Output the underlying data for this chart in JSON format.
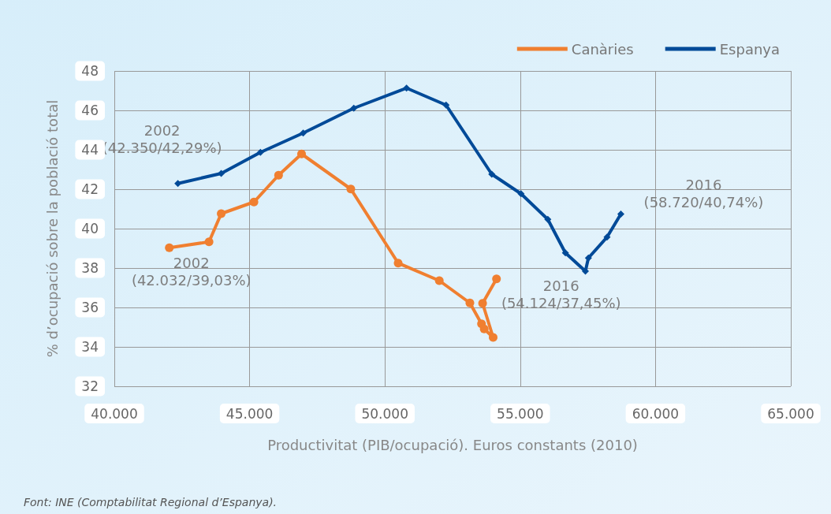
{
  "chart_data": {
    "type": "line",
    "xlabel": "Productivitat (PIB/ocupació). Euros constants (2010)",
    "ylabel": "% d’ocupació sobre la població total",
    "xlim": [
      40000,
      65000
    ],
    "xticks": [
      {
        "value": 40000,
        "label": "40.000"
      },
      {
        "value": 45000,
        "label": "45.000"
      },
      {
        "value": 50000,
        "label": "50.000"
      },
      {
        "value": 55000,
        "label": "55.000"
      },
      {
        "value": 60000,
        "label": "60.000"
      },
      {
        "value": 65000,
        "label": "65.000"
      }
    ],
    "ylim": [
      32,
      48
    ],
    "yticks": [
      32,
      34,
      36,
      38,
      40,
      42,
      44,
      46,
      48
    ],
    "grid": true,
    "legend": "top right",
    "line_style": "solid",
    "series": [
      {
        "name": "Canàries",
        "color": "#f07f30",
        "marker": "circle",
        "x": [
          42032,
          43500,
          43950,
          45160,
          46070,
          46920,
          48740,
          50490,
          52010,
          53140,
          53570,
          53670,
          54000,
          53610,
          54124
        ],
        "values": [
          39.03,
          39.33,
          40.76,
          41.35,
          42.71,
          43.79,
          42.01,
          38.25,
          37.36,
          36.23,
          35.17,
          34.91,
          34.48,
          36.21,
          37.45
        ]
      },
      {
        "name": "Espanya",
        "color": "#004a98",
        "marker": "diamond",
        "x": [
          42350,
          43950,
          45400,
          46980,
          48850,
          50800,
          52260,
          53950,
          55030,
          56020,
          56670,
          57410,
          57520,
          58210,
          58720
        ],
        "values": [
          42.29,
          42.8,
          43.87,
          44.85,
          46.11,
          47.13,
          46.27,
          42.76,
          41.77,
          40.47,
          38.77,
          37.84,
          38.51,
          39.57,
          40.74
        ]
      }
    ],
    "annotations": [
      {
        "text": "2002\n(42.350/42,29%)",
        "x": 42350,
        "y": 42.29
      },
      {
        "text": "2002\n(42.032/39,03%)",
        "x": 42032,
        "y": 39.03
      },
      {
        "text": "2016\n(54.124/37,45%)",
        "x": 54124,
        "y": 37.45
      },
      {
        "text": "2016\n(58.720/40,74%)",
        "x": 58720,
        "y": 40.74
      },
      "Font: INE (Comptabilitat Regional d’Espanya)."
    ]
  }
}
